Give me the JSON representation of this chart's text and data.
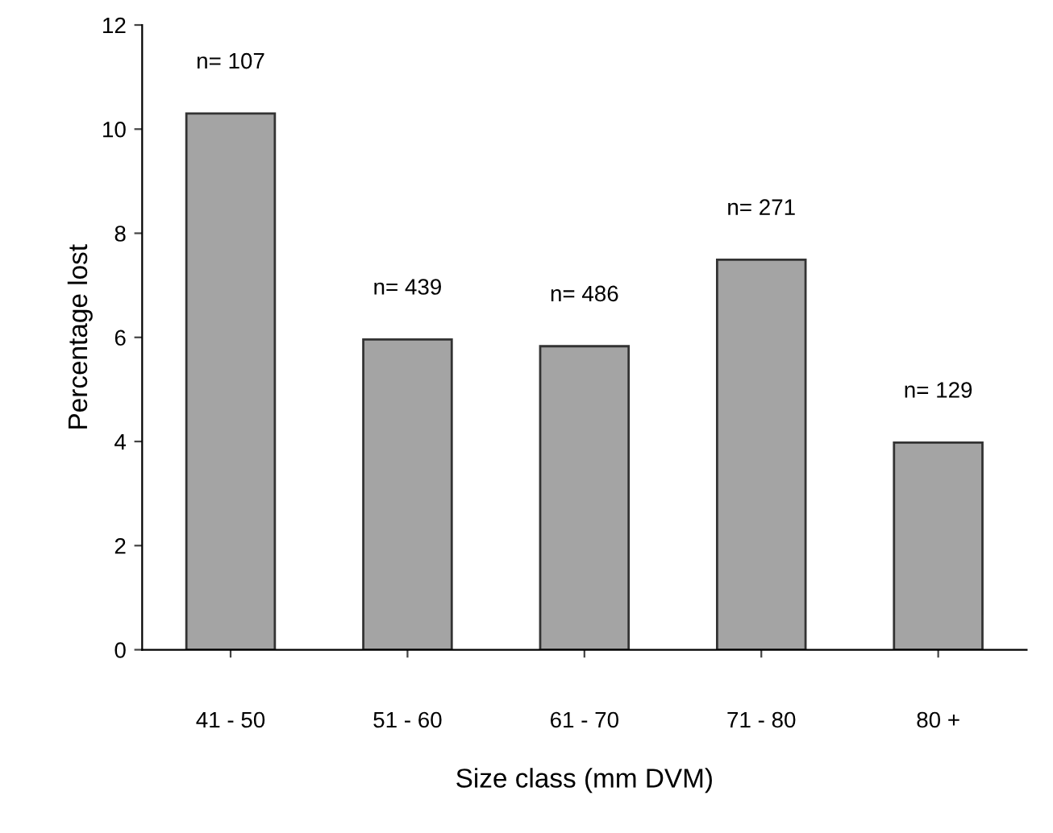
{
  "chart_data": {
    "type": "bar",
    "xlabel": "Size class (mm DVM)",
    "ylabel": "Percentage lost",
    "categories": [
      "41 - 50",
      "51 - 60",
      "61 - 70",
      "71 - 80",
      "80 +"
    ],
    "values": [
      10.3,
      5.96,
      5.83,
      7.49,
      3.98
    ],
    "color": "#a4a4a4",
    "ylim": [
      0,
      12
    ],
    "yticks": [
      0,
      2,
      4,
      6,
      8,
      10,
      12
    ],
    "grid": false,
    "legend": false,
    "annotations": [
      {
        "text": "n= 107",
        "x": "41 - 50",
        "y": 10.3
      },
      {
        "text": "n= 439",
        "x": "51 - 60",
        "y": 5.96
      },
      {
        "text": "n= 486",
        "x": "61 - 70",
        "y": 5.83
      },
      {
        "text": "n= 271",
        "x": "71 - 80",
        "y": 7.49
      },
      {
        "text": "n= 129",
        "x": "80 +",
        "y": 3.98
      }
    ]
  }
}
